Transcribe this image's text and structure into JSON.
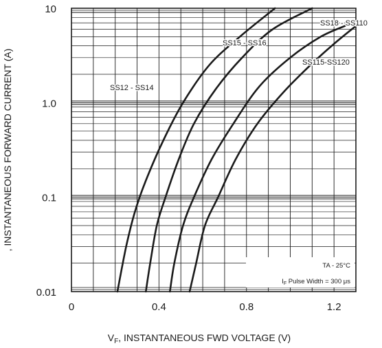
{
  "chart_data": {
    "type": "line",
    "title": "",
    "xlabel": {
      "main": "V",
      "sub": "F",
      "rest": ", INSTANTANEOUS FWD VOLTAGE (V)"
    },
    "ylabel": ", INSTANTANEOUS FORWARD CURRENT (A)",
    "x_scale": "linear",
    "y_scale": "log",
    "xlim": [
      0,
      1.3
    ],
    "ylim": [
      0.01,
      10
    ],
    "x_ticks": [
      {
        "value": 0,
        "label": "0"
      },
      {
        "value": 0.4,
        "label": "0.4"
      },
      {
        "value": 0.8,
        "label": "0.8"
      },
      {
        "value": 1.2,
        "label": "1.2"
      }
    ],
    "y_ticks": [
      {
        "value": 0.01,
        "label": "0.01"
      },
      {
        "value": 0.1,
        "label": "0.1"
      },
      {
        "value": 1,
        "label": "1.0"
      },
      {
        "value": 10,
        "label": "10"
      }
    ],
    "grid": true,
    "series": [
      {
        "name": "SS12 - SS14",
        "x": [
          0.21,
          0.25,
          0.29,
          0.34,
          0.42,
          0.51,
          0.63,
          0.77,
          0.93
        ],
        "y": [
          0.01,
          0.03,
          0.07,
          0.15,
          0.4,
          1.0,
          2.5,
          5.0,
          10
        ]
      },
      {
        "name": "SS15 - SS16",
        "x": [
          0.34,
          0.36,
          0.39,
          0.43,
          0.49,
          0.56,
          0.66,
          0.78,
          0.92,
          1.1
        ],
        "y": [
          0.01,
          0.02,
          0.05,
          0.1,
          0.25,
          0.6,
          1.4,
          3.0,
          6.0,
          10
        ]
      },
      {
        "name": "SS18 - SS110",
        "x": [
          0.45,
          0.47,
          0.51,
          0.56,
          0.64,
          0.74,
          0.86,
          1.0,
          1.14,
          1.25
        ],
        "y": [
          0.01,
          0.02,
          0.05,
          0.1,
          0.25,
          0.6,
          1.5,
          3.0,
          5.0,
          6.5
        ]
      },
      {
        "name": "SS115-SS120",
        "x": [
          0.54,
          0.57,
          0.61,
          0.67,
          0.75,
          0.85,
          0.97,
          1.1,
          1.2,
          1.3
        ],
        "y": [
          0.01,
          0.02,
          0.05,
          0.1,
          0.25,
          0.6,
          1.3,
          2.6,
          4.2,
          6.5
        ]
      }
    ],
    "series_labels": [
      {
        "text": "SS12 - SS14"
      },
      {
        "text": "SS15 - SS16"
      },
      {
        "text": "SS18 - SS110"
      },
      {
        "text": "SS115-SS120"
      }
    ],
    "annotations": {
      "temp": "TA - 25°C",
      "pulse_prefix": "I",
      "pulse_sub": "F",
      "pulse_rest": " Pulse Width = 300 μs"
    },
    "colors": {
      "curve": "#1a1a1a",
      "grid": "#1a1a1a",
      "background": "#ffffff"
    }
  }
}
